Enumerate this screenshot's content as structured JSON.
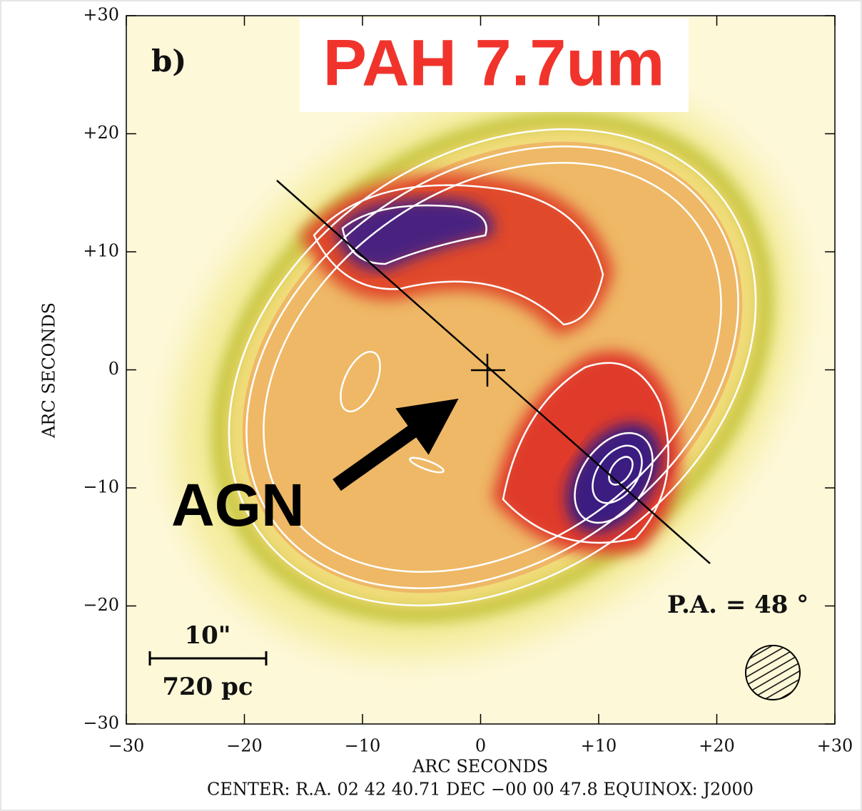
{
  "chart_data": {
    "type": "image",
    "title": "PAH 7.7um",
    "panel_label": "b)",
    "x_label": "ARC SECONDS",
    "y_label": "ARC SECONDS",
    "footer": "CENTER: R.A. 02 42 40.71 DEC −00 00 47.8  EQUINOX: J2000",
    "annotations": {
      "agn": "AGN",
      "position_angle": "P.A. = 48 °",
      "scale_angle": "10\"",
      "scale_length": "720 pc"
    },
    "xlim": [
      -30,
      30
    ],
    "ylim": [
      -30,
      30
    ],
    "xticks": [
      {
        "value": -30,
        "label": "−30"
      },
      {
        "value": -20,
        "label": "−20"
      },
      {
        "value": -10,
        "label": "−10"
      },
      0,
      {
        "value": 10,
        "label": "+10"
      },
      {
        "value": 20,
        "label": "+20"
      },
      {
        "value": 30,
        "label": "+30"
      }
    ],
    "yticks": [
      {
        "value": -30,
        "label": "−30"
      },
      {
        "value": -20,
        "label": "−20"
      },
      {
        "value": -10,
        "label": "−10"
      },
      0,
      {
        "value": 10,
        "label": "+10"
      },
      {
        "value": 20,
        "label": "+20"
      },
      {
        "value": 30,
        "label": "+30"
      }
    ]
  }
}
